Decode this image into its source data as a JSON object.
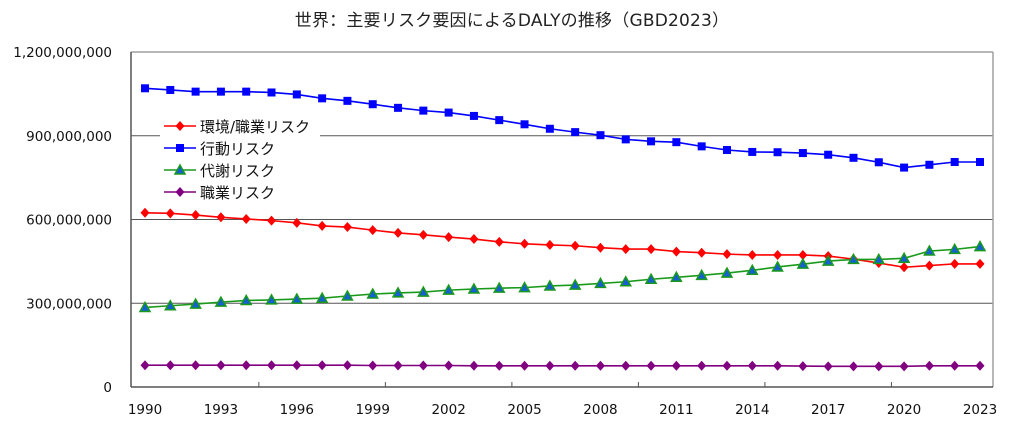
{
  "chart_data": {
    "type": "line",
    "title": "世界：主要リスク要因によるDALYの推移（GBD2023）",
    "xlabel": "",
    "ylabel": "",
    "ylim": [
      0,
      1200000000
    ],
    "yticks": [
      0,
      300000000,
      600000000,
      900000000,
      1200000000
    ],
    "ytick_labels": [
      "0",
      "300,000,000",
      "600,000,000",
      "900,000,000",
      "1,200,000,000"
    ],
    "xtick_labels": [
      "1990",
      "1993",
      "1996",
      "1999",
      "2002",
      "2005",
      "2008",
      "2011",
      "2014",
      "2017",
      "2020",
      "2023"
    ],
    "grid": "horizontal",
    "legend_position": "top-left",
    "x": [
      1990,
      1991,
      1992,
      1993,
      1994,
      1995,
      1996,
      1997,
      1998,
      1999,
      2000,
      2001,
      2002,
      2003,
      2004,
      2005,
      2006,
      2007,
      2008,
      2009,
      2010,
      2011,
      2012,
      2013,
      2014,
      2015,
      2016,
      2017,
      2018,
      2019,
      2020,
      2021,
      2022,
      2023
    ],
    "series": [
      {
        "name": "環境/職業リスク",
        "color": "#ff0000",
        "marker": "diamond",
        "marker_fill": "#ff0000",
        "values": [
          624000000,
          622000000,
          616000000,
          608000000,
          602000000,
          596000000,
          588000000,
          577000000,
          573000000,
          562000000,
          552000000,
          545000000,
          537000000,
          530000000,
          520000000,
          513000000,
          509000000,
          506000000,
          499000000,
          494000000,
          494000000,
          485000000,
          481000000,
          476000000,
          473000000,
          473000000,
          473000000,
          469000000,
          458000000,
          444000000,
          429000000,
          435000000,
          441000000,
          441000000
        ]
      },
      {
        "name": "行動リスク",
        "color": "#0000ff",
        "marker": "square",
        "marker_fill": "#0000ff",
        "values": [
          1070000000,
          1064000000,
          1058000000,
          1058000000,
          1058000000,
          1055000000,
          1048000000,
          1034000000,
          1025000000,
          1013000000,
          1000000000,
          990000000,
          983000000,
          971000000,
          956000000,
          941000000,
          925000000,
          913000000,
          902000000,
          887000000,
          880000000,
          877000000,
          862000000,
          849000000,
          842000000,
          841000000,
          838000000,
          832000000,
          821000000,
          805000000,
          786000000,
          796000000,
          806000000,
          806000000
        ]
      },
      {
        "name": "代謝リスク",
        "color": "#1a9a1a",
        "marker": "triangle",
        "marker_fill": "#1560d0",
        "values": [
          285000000,
          291000000,
          297000000,
          304000000,
          310000000,
          312000000,
          315000000,
          318000000,
          326000000,
          333000000,
          337000000,
          340000000,
          347000000,
          351000000,
          354000000,
          356000000,
          362000000,
          365000000,
          371000000,
          377000000,
          386000000,
          393000000,
          400000000,
          408000000,
          418000000,
          430000000,
          440000000,
          451000000,
          457000000,
          457000000,
          461000000,
          487000000,
          493000000,
          503000000
        ]
      },
      {
        "name": "職業リスク",
        "color": "#800080",
        "marker": "diamond",
        "marker_fill": "#800080",
        "values": [
          78000000,
          78000000,
          78000000,
          78000000,
          78000000,
          78000000,
          78000000,
          78000000,
          78000000,
          77000000,
          77000000,
          77000000,
          77000000,
          76000000,
          76000000,
          76000000,
          76000000,
          76000000,
          76000000,
          76000000,
          76000000,
          76000000,
          76000000,
          76000000,
          76000000,
          76000000,
          75000000,
          74000000,
          74000000,
          74000000,
          74000000,
          76000000,
          76000000,
          76000000
        ]
      }
    ]
  }
}
